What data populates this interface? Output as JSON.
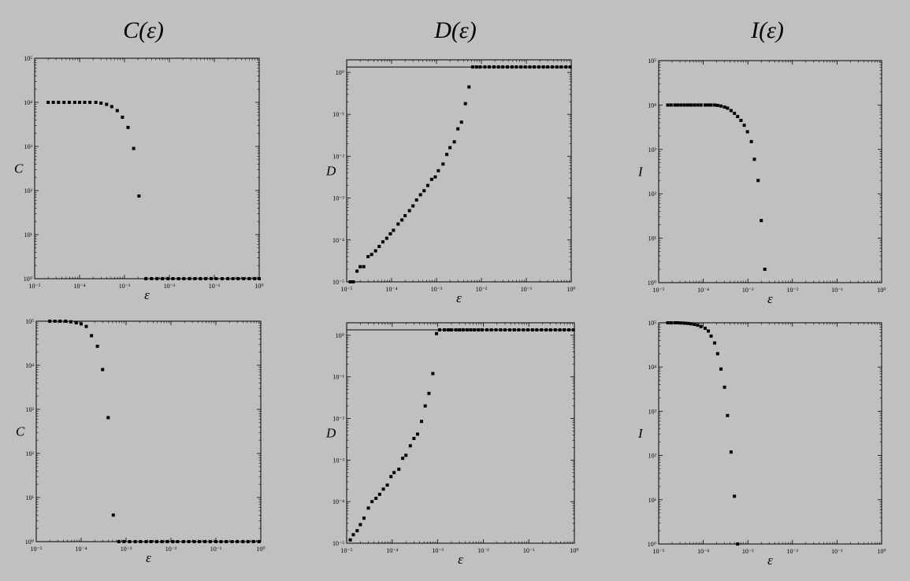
{
  "titles": [
    "C(ε)",
    "D(ε)",
    "I(ε)"
  ],
  "chart_data": [
    {
      "type": "scatter",
      "ylabel": "C",
      "xlabel": "ε",
      "xscale": "log",
      "yscale": "log",
      "xlim": [
        1e-05,
        1
      ],
      "ylim": [
        1,
        100000
      ],
      "xticks": [
        "10⁻⁵",
        "10⁻⁴",
        "10⁻³",
        "10⁻²",
        "10⁻¹",
        "10⁰"
      ],
      "yticks": [
        "10⁰",
        "10¹",
        "10²",
        "10³",
        "10⁴",
        "10⁵"
      ],
      "hline": 1,
      "points": [
        [
          2e-05,
          10000
        ],
        [
          2.6e-05,
          10000
        ],
        [
          3.4e-05,
          10000
        ],
        [
          4.5e-05,
          10000
        ],
        [
          5.9e-05,
          10000
        ],
        [
          7.8e-05,
          10000
        ],
        [
          0.0001,
          10000
        ],
        [
          0.00013,
          10000
        ],
        [
          0.00017,
          10000
        ],
        [
          0.00023,
          10000
        ],
        [
          0.0003,
          9600
        ],
        [
          0.0004,
          9000
        ],
        [
          0.00052,
          8000
        ],
        [
          0.00069,
          6500
        ],
        [
          0.0009,
          4600
        ],
        [
          0.0012,
          2700
        ],
        [
          0.0016,
          900
        ],
        [
          0.0021,
          75
        ],
        [
          0.003,
          1
        ],
        [
          0.004,
          1
        ],
        [
          0.0053,
          1
        ],
        [
          0.007,
          1
        ],
        [
          0.0093,
          1
        ],
        [
          0.012,
          1
        ],
        [
          0.016,
          1
        ],
        [
          0.021,
          1
        ],
        [
          0.028,
          1
        ],
        [
          0.037,
          1
        ],
        [
          0.049,
          1
        ],
        [
          0.064,
          1
        ],
        [
          0.085,
          1
        ],
        [
          0.11,
          1
        ],
        [
          0.15,
          1
        ],
        [
          0.2,
          1
        ],
        [
          0.26,
          1
        ],
        [
          0.34,
          1
        ],
        [
          0.45,
          1
        ],
        [
          0.6,
          1
        ],
        [
          0.79,
          1
        ],
        [
          1,
          1
        ]
      ]
    },
    {
      "type": "scatter",
      "ylabel": "D",
      "xlabel": "ε",
      "xscale": "log",
      "yscale": "log",
      "xlim": [
        1e-05,
        1
      ],
      "ylim": [
        1e-05,
        2
      ],
      "xticks": [
        "10⁻⁵",
        "10⁻⁴",
        "10⁻³",
        "10⁻²",
        "10⁻¹",
        "10⁰"
      ],
      "yticks": [
        "10⁻⁵",
        "10⁻⁴",
        "10⁻³",
        "10⁻²",
        "10⁻¹",
        "10⁰"
      ],
      "hline": 1.35,
      "points": [
        [
          1.2e-05,
          1e-05
        ],
        [
          1.4e-05,
          1e-05
        ],
        [
          1.7e-05,
          1.8e-05
        ],
        [
          2e-05,
          2.3e-05
        ],
        [
          2.4e-05,
          2.3e-05
        ],
        [
          3e-05,
          4e-05
        ],
        [
          3.6e-05,
          4.5e-05
        ],
        [
          4.4e-05,
          5.5e-05
        ],
        [
          5.3e-05,
          7e-05
        ],
        [
          6.4e-05,
          9e-05
        ],
        [
          7.8e-05,
          0.00011
        ],
        [
          9.4e-05,
          0.00014
        ],
        [
          0.00011,
          0.00017
        ],
        [
          0.00014,
          0.00024
        ],
        [
          0.00017,
          0.0003
        ],
        [
          0.0002,
          0.00038
        ],
        [
          0.00025,
          0.0005
        ],
        [
          0.0003,
          0.00065
        ],
        [
          0.00036,
          0.0009
        ],
        [
          0.00044,
          0.0012
        ],
        [
          0.00053,
          0.0015
        ],
        [
          0.00064,
          0.002
        ],
        [
          0.00078,
          0.0028
        ],
        [
          0.00094,
          0.0032
        ],
        [
          0.0011,
          0.0045
        ],
        [
          0.0014,
          0.0065
        ],
        [
          0.0017,
          0.011
        ],
        [
          0.002,
          0.016
        ],
        [
          0.0025,
          0.022
        ],
        [
          0.003,
          0.045
        ],
        [
          0.0036,
          0.065
        ],
        [
          0.0044,
          0.18
        ],
        [
          0.0053,
          0.45
        ],
        [
          0.0064,
          1.35
        ],
        [
          0.0078,
          1.35
        ],
        [
          0.0094,
          1.35
        ],
        [
          0.012,
          1.35
        ],
        [
          0.015,
          1.35
        ],
        [
          0.019,
          1.35
        ],
        [
          0.024,
          1.35
        ],
        [
          0.03,
          1.35
        ],
        [
          0.038,
          1.35
        ],
        [
          0.048,
          1.35
        ],
        [
          0.06,
          1.35
        ],
        [
          0.076,
          1.35
        ],
        [
          0.095,
          1.35
        ],
        [
          0.12,
          1.35
        ],
        [
          0.15,
          1.35
        ],
        [
          0.19,
          1.35
        ],
        [
          0.24,
          1.35
        ],
        [
          0.3,
          1.35
        ],
        [
          0.38,
          1.35
        ],
        [
          0.48,
          1.35
        ],
        [
          0.6,
          1.35
        ],
        [
          0.76,
          1.35
        ],
        [
          0.95,
          1.35
        ]
      ]
    },
    {
      "type": "scatter",
      "ylabel": "I",
      "xlabel": "ε",
      "xscale": "log",
      "yscale": "log",
      "xlim": [
        1e-05,
        1
      ],
      "ylim": [
        1,
        100000
      ],
      "xticks": [
        "10⁻⁵",
        "10⁻⁴",
        "10⁻³",
        "10⁻²",
        "10⁻¹",
        "10⁰"
      ],
      "yticks": [
        "10⁰",
        "10¹",
        "10²",
        "10³",
        "10⁴",
        "10⁵"
      ],
      "points": [
        [
          1.6e-05,
          10000
        ],
        [
          1.9e-05,
          10000
        ],
        [
          2.3e-05,
          10000
        ],
        [
          2.7e-05,
          10000
        ],
        [
          3.2e-05,
          10000
        ],
        [
          3.8e-05,
          10000
        ],
        [
          4.5e-05,
          10000
        ],
        [
          5.3e-05,
          10000
        ],
        [
          6.3e-05,
          10000
        ],
        [
          7.5e-05,
          10000
        ],
        [
          8.9e-05,
          10000
        ],
        [
          0.00011,
          10000
        ],
        [
          0.00013,
          10000
        ],
        [
          0.00015,
          10000
        ],
        [
          0.00018,
          10000
        ],
        [
          0.00021,
          9800
        ],
        [
          0.00025,
          9500
        ],
        [
          0.0003,
          9000
        ],
        [
          0.00035,
          8500
        ],
        [
          0.00042,
          7500
        ],
        [
          0.0005,
          6500
        ],
        [
          0.00059,
          5500
        ],
        [
          0.0007,
          4500
        ],
        [
          0.00083,
          3500
        ],
        [
          0.00098,
          2500
        ],
        [
          0.0012,
          1500
        ],
        [
          0.0014,
          600
        ],
        [
          0.0017,
          200
        ],
        [
          0.002,
          25
        ],
        [
          0.0024,
          2
        ]
      ]
    },
    {
      "type": "scatter",
      "ylabel": "C",
      "xlabel": "ε",
      "xscale": "log",
      "yscale": "log",
      "xlim": [
        1e-05,
        1
      ],
      "ylim": [
        1,
        100000
      ],
      "xticks": [
        "10⁻⁵",
        "10⁻⁴",
        "10⁻³",
        "10⁻²",
        "10⁻¹",
        "10⁰"
      ],
      "yticks": [
        "10⁰",
        "10¹",
        "10²",
        "10³",
        "10⁴",
        "10⁵"
      ],
      "hline": 1,
      "points": [
        [
          2e-05,
          100000
        ],
        [
          2.6e-05,
          100000
        ],
        [
          3.4e-05,
          100000
        ],
        [
          4.5e-05,
          100000
        ],
        [
          5.9e-05,
          97000
        ],
        [
          7.8e-05,
          92000
        ],
        [
          0.0001,
          87000
        ],
        [
          0.00013,
          76000
        ],
        [
          0.00017,
          47000
        ],
        [
          0.00023,
          27000
        ],
        [
          0.0003,
          8000
        ],
        [
          0.0004,
          650
        ],
        [
          0.00052,
          4
        ],
        [
          0.00069,
          1
        ],
        [
          0.0009,
          1
        ],
        [
          0.0012,
          1
        ],
        [
          0.0016,
          1
        ],
        [
          0.0021,
          1
        ],
        [
          0.0028,
          1
        ],
        [
          0.0036,
          1
        ],
        [
          0.0048,
          1
        ],
        [
          0.0063,
          1
        ],
        [
          0.0083,
          1
        ],
        [
          0.011,
          1
        ],
        [
          0.014,
          1
        ],
        [
          0.019,
          1
        ],
        [
          0.025,
          1
        ],
        [
          0.033,
          1
        ],
        [
          0.043,
          1
        ],
        [
          0.057,
          1
        ],
        [
          0.075,
          1
        ],
        [
          0.1,
          1
        ],
        [
          0.13,
          1
        ],
        [
          0.17,
          1
        ],
        [
          0.23,
          1
        ],
        [
          0.3,
          1
        ],
        [
          0.4,
          1
        ],
        [
          0.52,
          1
        ],
        [
          0.69,
          1
        ],
        [
          0.91,
          1
        ]
      ]
    },
    {
      "type": "scatter",
      "ylabel": "D",
      "xlabel": "ε",
      "xscale": "log",
      "yscale": "log",
      "xlim": [
        1e-05,
        1
      ],
      "ylim": [
        1e-05,
        2
      ],
      "xticks": [
        "10⁻⁵",
        "10⁻⁴",
        "10⁻³",
        "10⁻²",
        "10⁻¹",
        "10⁰"
      ],
      "yticks": [
        "10⁻⁵",
        "10⁻⁴",
        "10⁻³",
        "10⁻²",
        "10⁻¹",
        "10⁰"
      ],
      "hline": 1.35,
      "points": [
        [
          1.2e-05,
          1.2e-05
        ],
        [
          1.4e-05,
          1.6e-05
        ],
        [
          1.7e-05,
          2e-05
        ],
        [
          2e-05,
          2.8e-05
        ],
        [
          2.4e-05,
          4e-05
        ],
        [
          3e-05,
          7e-05
        ],
        [
          3.6e-05,
          0.0001
        ],
        [
          4.4e-05,
          0.00012
        ],
        [
          5.3e-05,
          0.00015
        ],
        [
          6.4e-05,
          0.0002
        ],
        [
          7.8e-05,
          0.00025
        ],
        [
          9.4e-05,
          0.0004
        ],
        [
          0.00011,
          0.0005
        ],
        [
          0.00014,
          0.0006
        ],
        [
          0.00017,
          0.0011
        ],
        [
          0.0002,
          0.0013
        ],
        [
          0.00025,
          0.0022
        ],
        [
          0.0003,
          0.0033
        ],
        [
          0.00036,
          0.0042
        ],
        [
          0.00044,
          0.0085
        ],
        [
          0.00053,
          0.02
        ],
        [
          0.00064,
          0.04
        ],
        [
          0.00078,
          0.12
        ],
        [
          0.00094,
          1.1
        ],
        [
          0.0011,
          1.35
        ],
        [
          0.0014,
          1.35
        ],
        [
          0.0017,
          1.35
        ],
        [
          0.002,
          1.35
        ],
        [
          0.0025,
          1.35
        ],
        [
          0.003,
          1.35
        ],
        [
          0.0036,
          1.35
        ],
        [
          0.0044,
          1.35
        ],
        [
          0.0053,
          1.35
        ],
        [
          0.0064,
          1.35
        ],
        [
          0.0078,
          1.35
        ],
        [
          0.0094,
          1.35
        ],
        [
          0.012,
          1.35
        ],
        [
          0.015,
          1.35
        ],
        [
          0.019,
          1.35
        ],
        [
          0.024,
          1.35
        ],
        [
          0.03,
          1.35
        ],
        [
          0.038,
          1.35
        ],
        [
          0.048,
          1.35
        ],
        [
          0.06,
          1.35
        ],
        [
          0.076,
          1.35
        ],
        [
          0.095,
          1.35
        ],
        [
          0.12,
          1.35
        ],
        [
          0.15,
          1.35
        ],
        [
          0.19,
          1.35
        ],
        [
          0.24,
          1.35
        ],
        [
          0.3,
          1.35
        ],
        [
          0.38,
          1.35
        ],
        [
          0.48,
          1.35
        ],
        [
          0.6,
          1.35
        ],
        [
          0.76,
          1.35
        ],
        [
          0.95,
          1.35
        ]
      ]
    },
    {
      "type": "scatter",
      "ylabel": "I",
      "xlabel": "ε",
      "xscale": "log",
      "yscale": "log",
      "xlim": [
        1e-05,
        1
      ],
      "ylim": [
        1,
        100000
      ],
      "xticks": [
        "10⁻⁵",
        "10⁻⁴",
        "10⁻³",
        "10⁻²",
        "10⁻¹",
        "10⁰"
      ],
      "yticks": [
        "10⁰",
        "10¹",
        "10²",
        "10³",
        "10⁴",
        "10⁵"
      ],
      "points": [
        [
          1.6e-05,
          100000
        ],
        [
          1.9e-05,
          100000
        ],
        [
          2.3e-05,
          100000
        ],
        [
          2.7e-05,
          100000
        ],
        [
          3.2e-05,
          99000
        ],
        [
          3.8e-05,
          98000
        ],
        [
          4.5e-05,
          97000
        ],
        [
          5.3e-05,
          95000
        ],
        [
          6.3e-05,
          92000
        ],
        [
          7.5e-05,
          88000
        ],
        [
          8.9e-05,
          82000
        ],
        [
          0.00011,
          75000
        ],
        [
          0.00013,
          65000
        ],
        [
          0.00015,
          50000
        ],
        [
          0.00018,
          35000
        ],
        [
          0.00021,
          20000
        ],
        [
          0.00025,
          9000
        ],
        [
          0.0003,
          3500
        ],
        [
          0.00035,
          800
        ],
        [
          0.00042,
          120
        ],
        [
          0.0005,
          12
        ],
        [
          0.00059,
          1
        ]
      ]
    }
  ]
}
